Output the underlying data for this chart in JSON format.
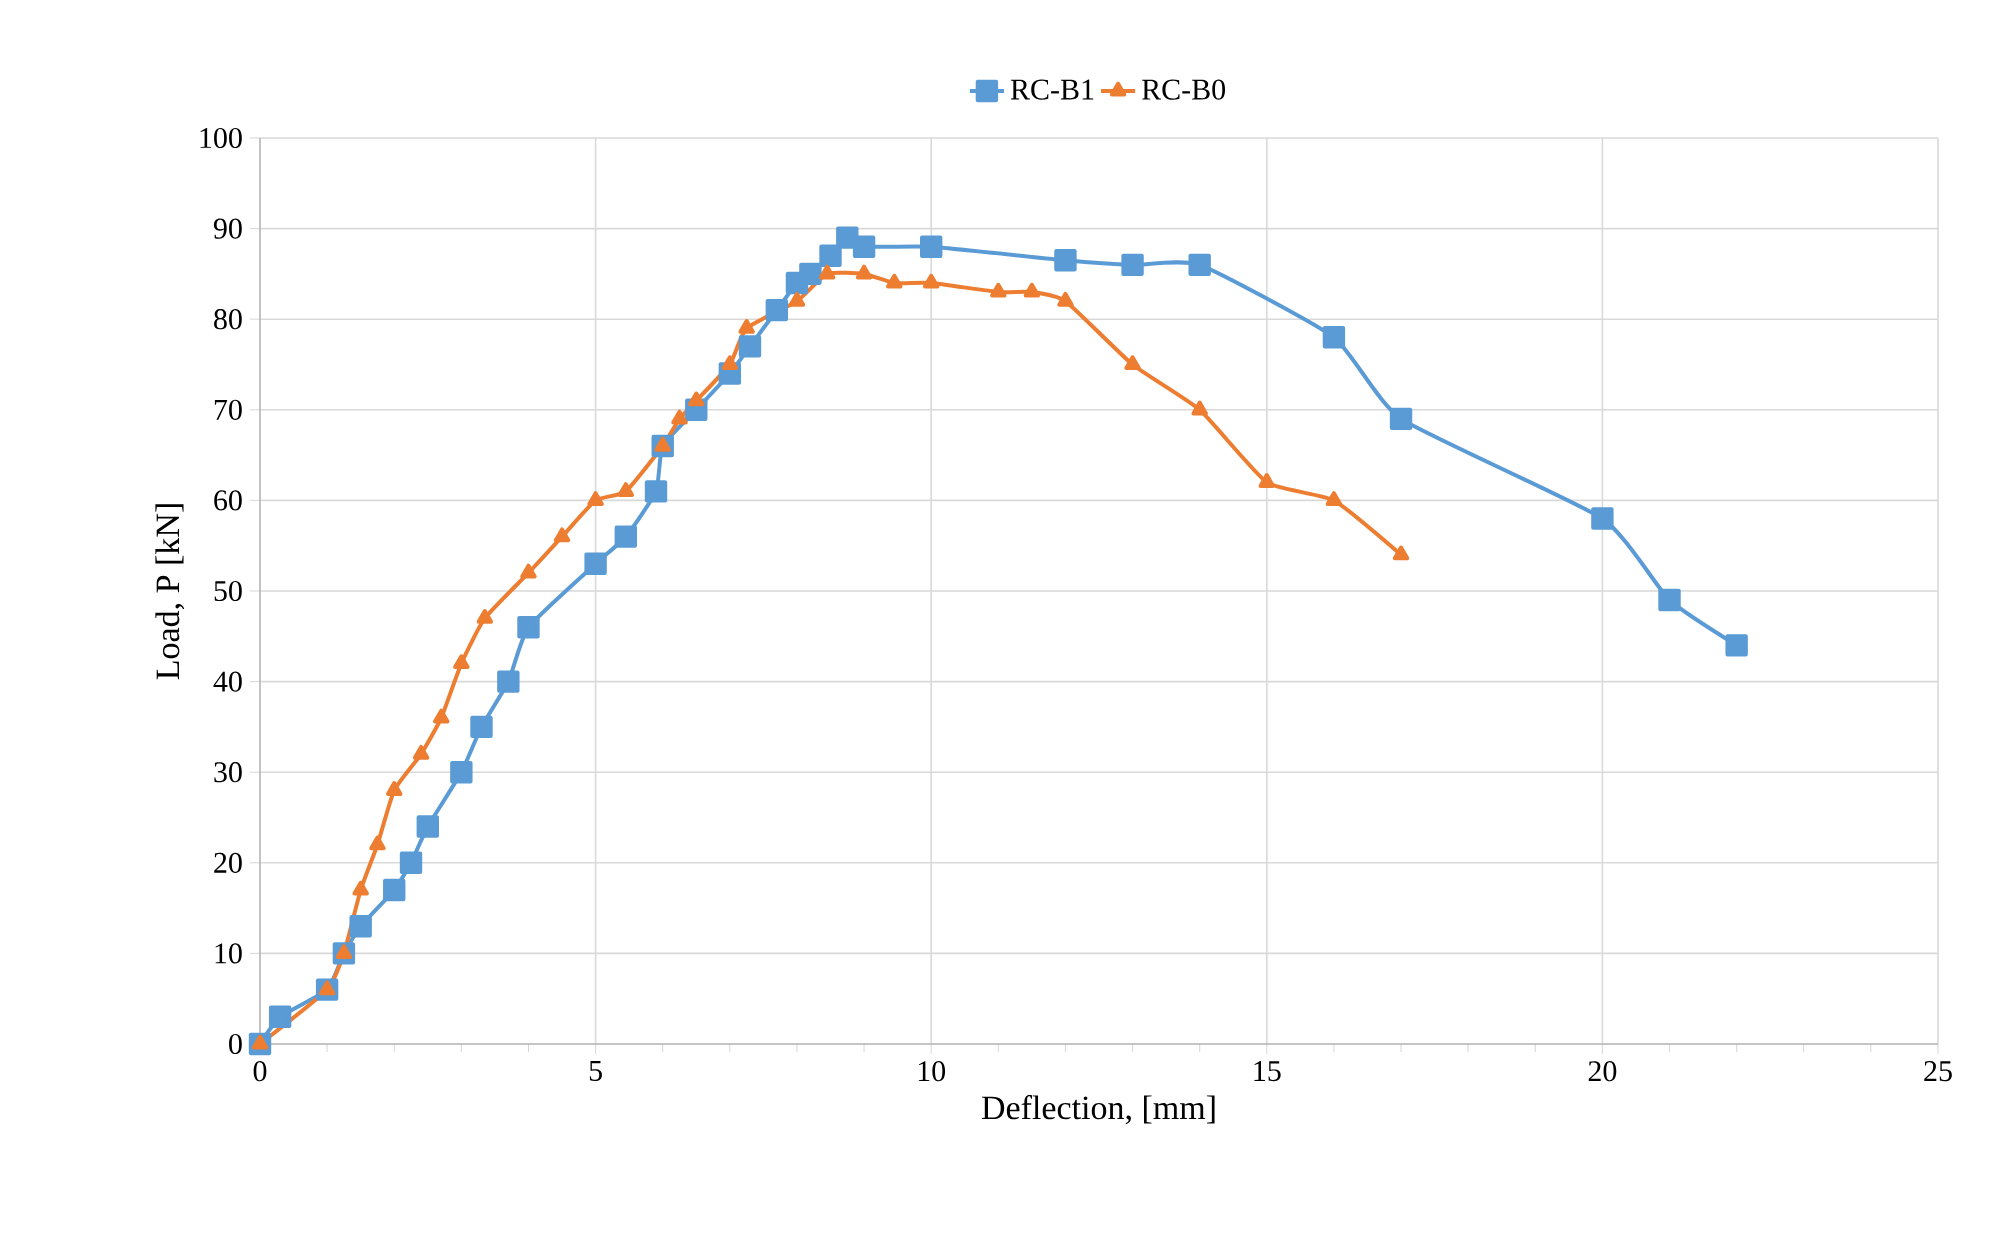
{
  "chart_data": {
    "type": "line",
    "xlabel": "Deflection, [mm]",
    "ylabel": "Load, P [kN]",
    "xlim": [
      0,
      25
    ],
    "ylim": [
      0,
      100
    ],
    "xticks": [
      0,
      5,
      10,
      15,
      20,
      25
    ],
    "yticks": [
      0,
      10,
      20,
      30,
      40,
      50,
      60,
      70,
      80,
      90,
      100
    ],
    "grid": true,
    "legend": "top",
    "line_style": "solid",
    "series": [
      {
        "name": "RC-B1",
        "color": "#5b9bd5",
        "marker": "square",
        "x": [
          0,
          0.3,
          1,
          1.25,
          1.5,
          2,
          2.25,
          2.5,
          3,
          3.3,
          3.7,
          4,
          5,
          5.45,
          5.9,
          6,
          6.5,
          7,
          7.3,
          7.7,
          8,
          8.2,
          8.5,
          8.75,
          9,
          10,
          12,
          13,
          14,
          16,
          17,
          20,
          21,
          22
        ],
        "values": [
          0,
          3,
          6,
          10,
          13,
          17,
          20,
          24,
          30,
          35,
          40,
          46,
          53,
          56,
          61,
          66,
          70,
          74,
          77,
          81,
          84,
          85,
          87,
          89,
          88,
          88,
          86.5,
          86,
          86,
          78,
          69,
          58,
          49,
          44
        ]
      },
      {
        "name": "RC-B0",
        "color": "#ed7d31",
        "marker": "triangle",
        "x": [
          0,
          1,
          1.25,
          1.5,
          1.75,
          2,
          2.4,
          2.7,
          3,
          3.35,
          4,
          4.5,
          5,
          5.45,
          6,
          6.25,
          6.5,
          7,
          7.25,
          8,
          8.45,
          9,
          9.45,
          10,
          11,
          11.5,
          12,
          13,
          14,
          15,
          16,
          17
        ],
        "values": [
          0,
          6,
          10,
          17,
          22,
          28,
          32,
          36,
          42,
          47,
          52,
          56,
          60,
          61,
          66,
          69,
          71,
          75,
          79,
          82,
          85,
          85,
          84,
          84,
          83,
          83,
          82,
          75,
          70,
          62,
          60,
          54
        ]
      }
    ]
  }
}
